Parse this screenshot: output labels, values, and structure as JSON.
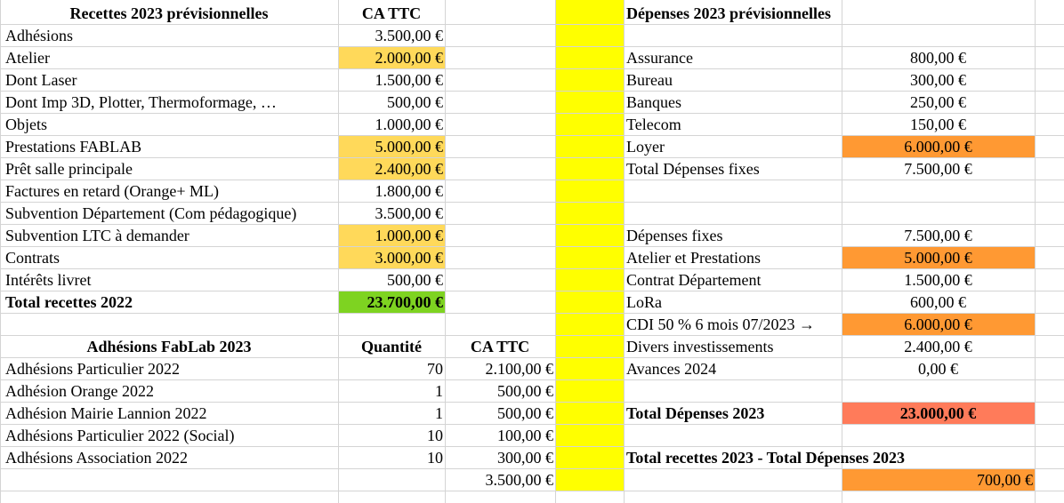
{
  "colors": {
    "light_yellow": "#ffd95a",
    "bright_yellow": "#ffff00",
    "green": "#7ed321",
    "orange": "#ff9933",
    "salmon": "#ff7b5a",
    "grid": "#d4d4d4"
  },
  "recettes": {
    "header": "Recettes 2023 prévisionnelles",
    "col_header": "CA TTC",
    "rows": [
      {
        "label": "Adhésions",
        "value": "3.500,00 €",
        "highlight": false
      },
      {
        "label": "Atelier",
        "value": "2.000,00 €",
        "highlight": true
      },
      {
        "label": "Dont Laser",
        "value": "1.500,00 €",
        "highlight": false
      },
      {
        "label": "Dont Imp 3D, Plotter, Thermoformage, …",
        "value": "500,00 €",
        "highlight": false
      },
      {
        "label": "Objets",
        "value": "1.000,00 €",
        "highlight": false
      },
      {
        "label": "Prestations FABLAB",
        "value": "5.000,00 €",
        "highlight": true
      },
      {
        "label": "Prêt salle principale",
        "value": "2.400,00 €",
        "highlight": true
      },
      {
        "label": "Factures en retard (Orange+ ML)",
        "value": "1.800,00 €",
        "highlight": false
      },
      {
        "label": "Subvention Département (Com pédagogique)",
        "value": "3.500,00 €",
        "highlight": false
      },
      {
        "label": "Subvention LTC à demander",
        "value": "1.000,00 €",
        "highlight": true
      },
      {
        "label": "Contrats",
        "value": "3.000,00 €",
        "highlight": true
      },
      {
        "label": "Intérêts livret",
        "value": "500,00 €",
        "highlight": false
      }
    ],
    "total_label": "Total recettes 2022",
    "total_value": "23.700,00 €"
  },
  "adhesions": {
    "header": "Adhésions FabLab 2023",
    "qty_header": "Quantité",
    "ca_header": "CA TTC",
    "rows": [
      {
        "label": "Adhésions Particulier 2022",
        "qty": "70",
        "ca": "2.100,00 €"
      },
      {
        "label": "Adhésion Orange 2022",
        "qty": "1",
        "ca": "500,00 €"
      },
      {
        "label": "Adhésion Mairie Lannion 2022",
        "qty": "1",
        "ca": "500,00 €"
      },
      {
        "label": "Adhésions Particulier 2022 (Social)",
        "qty": "10",
        "ca": "100,00 €"
      },
      {
        "label": "Adhésions Association 2022",
        "qty": "10",
        "ca": "300,00 €"
      }
    ],
    "total": "3.500,00 €"
  },
  "depenses": {
    "header": "Dépenses 2023 prévisionnelles",
    "fixes": [
      {
        "label": "Assurance",
        "value": "800,00 €",
        "highlight": false
      },
      {
        "label": "Bureau",
        "value": "300,00 €",
        "highlight": false
      },
      {
        "label": "Banques",
        "value": "250,00 €",
        "highlight": false
      },
      {
        "label": "Telecom",
        "value": "150,00 €",
        "highlight": false
      },
      {
        "label": "Loyer",
        "value": "6.000,00 €",
        "highlight": true
      },
      {
        "label": "Total Dépenses fixes",
        "value": "7.500,00 €",
        "highlight": false
      }
    ],
    "details": [
      {
        "label": "Dépenses fixes",
        "value": "7.500,00 €",
        "highlight": false
      },
      {
        "label": "Atelier et Prestations",
        "value": "5.000,00 €",
        "highlight": true
      },
      {
        "label": "Contrat Département",
        "value": "1.500,00 €",
        "highlight": false
      },
      {
        "label": "LoRa",
        "value": "600,00 €",
        "highlight": false
      },
      {
        "label": "CDI 50 %  6 mois 07/2023 →",
        "value": "6.000,00 €",
        "highlight": true
      },
      {
        "label": "Divers investissements",
        "value": "2.400,00 €",
        "highlight": false
      },
      {
        "label": "Avances 2024",
        "value": "0,00 €",
        "highlight": false
      }
    ],
    "total_label": "Total Dépenses 2023",
    "total_value": "23.000,00 €",
    "balance_label": "Total recettes 2023 - Total Dépenses 2023",
    "balance_value": "700,00 €"
  }
}
